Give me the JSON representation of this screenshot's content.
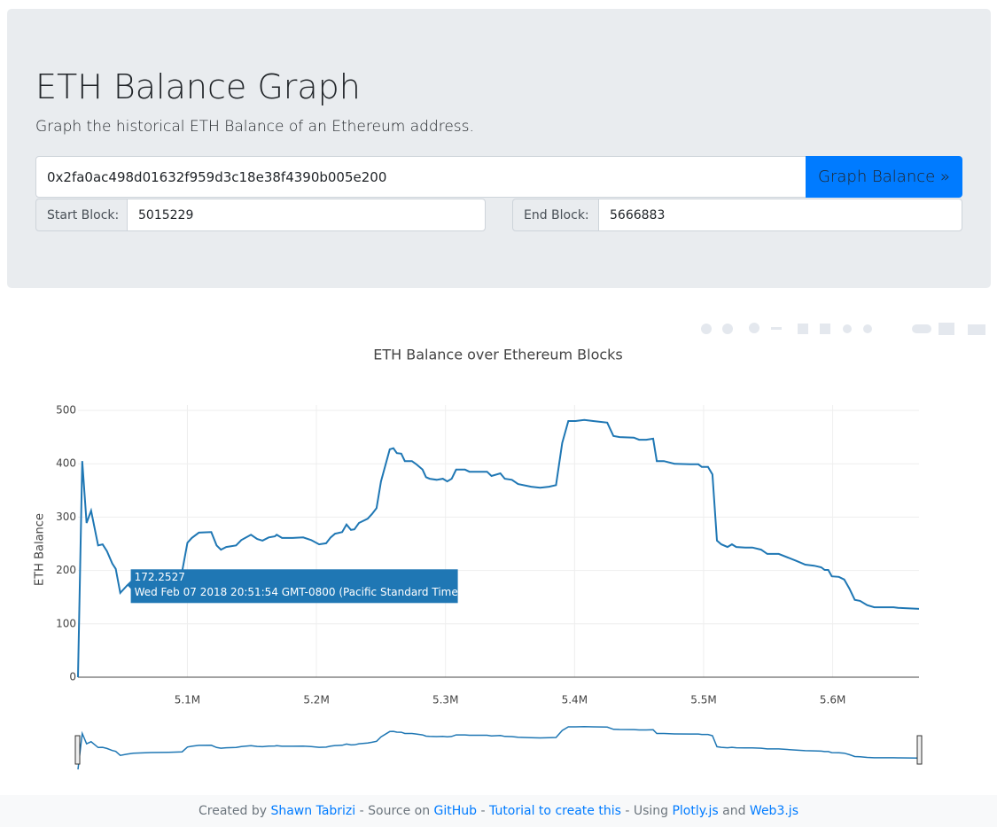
{
  "header": {
    "title": "ETH Balance Graph",
    "subtitle": "Graph the historical ETH Balance of an Ethereum address."
  },
  "form": {
    "address": "0x2fa0ac498d01632f959d3c18e38f4390b005e200",
    "button": "Graph Balance »",
    "start_label": "Start Block:",
    "start_value": "5015229",
    "end_label": "End Block:",
    "end_value": "5666883"
  },
  "chart_data": {
    "type": "line",
    "title": "ETH Balance over Ethereum Blocks",
    "y_label": "ETH Balance",
    "color": "#1f77b4",
    "x": [
      5015229,
      5018500,
      5021900,
      5025400,
      5030800,
      5034300,
      5037700,
      5041800,
      5044500,
      5048000,
      5053400,
      5058200,
      5071900,
      5085600,
      5095900,
      5100000,
      5103400,
      5108900,
      5118500,
      5122600,
      5126000,
      5130100,
      5137700,
      5141800,
      5149300,
      5154100,
      5158200,
      5163000,
      5167800,
      5169200,
      5173300,
      5181500,
      5189700,
      5195900,
      5202100,
      5207500,
      5211000,
      5214400,
      5219900,
      5223300,
      5226700,
      5229400,
      5232900,
      5239700,
      5243100,
      5246600,
      5250000,
      5256800,
      5259600,
      5262300,
      5265700,
      5268500,
      5274000,
      5277400,
      5282200,
      5284900,
      5287700,
      5293100,
      5297900,
      5301400,
      5304800,
      5308200,
      5315100,
      5318500,
      5332200,
      5335600,
      5342500,
      5345900,
      5351400,
      5356200,
      5366400,
      5373300,
      5380100,
      5385600,
      5390400,
      5395200,
      5400700,
      5407500,
      5414400,
      5425300,
      5430100,
      5434900,
      5445900,
      5450000,
      5455500,
      5460900,
      5463700,
      5469200,
      5477400,
      5489700,
      5495900,
      5498600,
      5503400,
      5506800,
      5510300,
      5513700,
      5518500,
      5521900,
      5525300,
      5532200,
      5537700,
      5544500,
      5549300,
      5558200,
      5571900,
      5578700,
      5585600,
      5591100,
      5593800,
      5596600,
      5599300,
      5604800,
      5608900,
      5613000,
      5617100,
      5621200,
      5626700,
      5632200,
      5647200,
      5650700,
      5666883
    ],
    "values": [
      0,
      405,
      289,
      312,
      247,
      249,
      236,
      213,
      203,
      158,
      172.2527,
      183,
      190,
      193,
      198,
      252,
      261,
      271,
      272,
      247,
      239,
      244,
      247,
      257,
      267,
      259,
      256,
      262,
      264,
      267,
      261,
      261,
      262,
      257,
      249,
      251,
      262,
      269,
      272,
      286,
      276,
      277,
      289,
      297,
      306,
      317,
      367,
      427,
      429,
      420,
      419,
      405,
      405,
      399,
      389,
      375,
      372,
      370,
      372,
      367,
      372,
      389,
      389,
      385,
      385,
      377,
      382,
      372,
      370,
      362,
      357,
      355,
      357,
      360,
      439,
      480,
      480,
      482,
      480,
      477,
      452,
      450,
      449,
      445,
      445,
      447,
      405,
      405,
      400,
      399,
      399,
      394,
      394,
      380,
      256,
      249,
      244,
      249,
      244,
      243,
      243,
      239,
      231,
      231,
      218,
      211,
      209,
      206,
      201,
      201,
      189,
      188,
      183,
      166,
      145,
      143,
      135,
      131,
      131,
      130,
      128
    ],
    "xlim": [
      5015229,
      5666883
    ],
    "ylim": [
      0,
      500
    ],
    "xticks": [
      {
        "value": 5100000,
        "label": "5.1M"
      },
      {
        "value": 5200000,
        "label": "5.2M"
      },
      {
        "value": 5300000,
        "label": "5.3M"
      },
      {
        "value": 5400000,
        "label": "5.4M"
      },
      {
        "value": 5500000,
        "label": "5.5M"
      },
      {
        "value": 5600000,
        "label": "5.6M"
      }
    ],
    "yticks": [
      0,
      100,
      200,
      300,
      400,
      500
    ],
    "grid": true,
    "range_slider": true,
    "hover": {
      "x": 5053400,
      "value": 172.2527,
      "label": "Wed Feb 07 2018 20:51:54 GMT-0800 (Pacific Standard Time)"
    }
  },
  "footer": [
    {
      "text": "Created by ",
      "link": false
    },
    {
      "text": "Shawn Tabrizi",
      "link": true
    },
    {
      "text": " - Source on ",
      "link": false
    },
    {
      "text": "GitHub",
      "link": true
    },
    {
      "text": " - ",
      "link": false
    },
    {
      "text": "Tutorial to create this",
      "link": true
    },
    {
      "text": " - Using ",
      "link": false
    },
    {
      "text": "Plotly.js",
      "link": true
    },
    {
      "text": " and ",
      "link": false
    },
    {
      "text": "Web3.js",
      "link": true
    }
  ]
}
